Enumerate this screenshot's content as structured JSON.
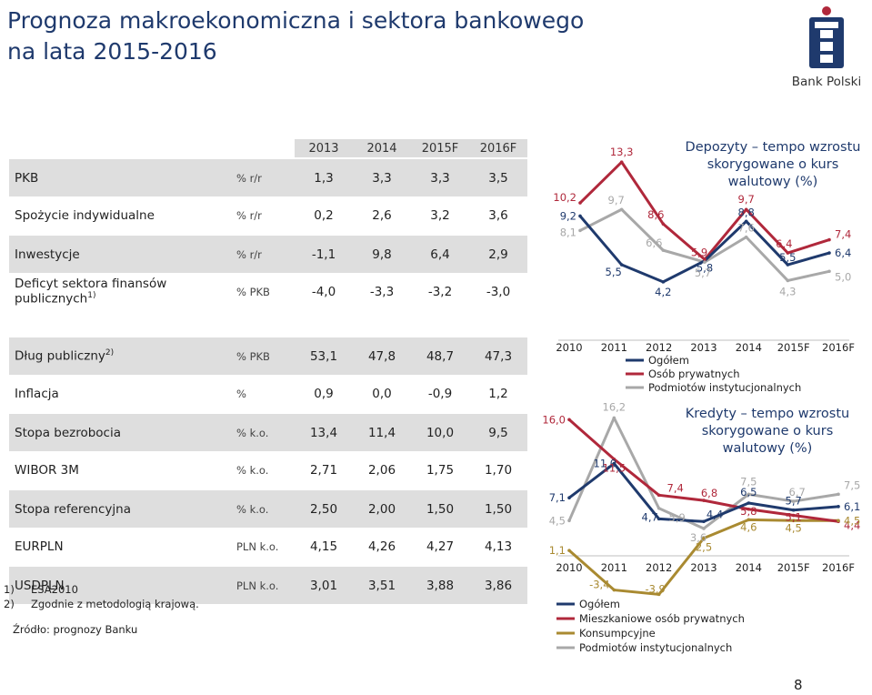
{
  "page": {
    "title_line1": "Prognoza makroekonomiczna i sektora bankowego",
    "title_line2": "na lata 2015-2016",
    "brand": "Bank Polski",
    "page_number": "8",
    "colors": {
      "navy": "#1f3a6d",
      "red": "#b0283b",
      "gold": "#a98a31",
      "gray": "#a8a8a8",
      "band": "#dedede"
    }
  },
  "table": {
    "years": [
      "2013",
      "2014",
      "2015F",
      "2016F"
    ],
    "rows": [
      {
        "label": "PKB",
        "sup": "",
        "unit": "% r/r",
        "values": [
          "1,3",
          "3,3",
          "3,3",
          "3,5"
        ]
      },
      {
        "label": "Spożycie indywidualne",
        "sup": "",
        "unit": "% r/r",
        "values": [
          "0,2",
          "2,6",
          "3,2",
          "3,6"
        ]
      },
      {
        "label": "Inwestycje",
        "sup": "",
        "unit": "% r/r",
        "values": [
          "-1,1",
          "9,8",
          "6,4",
          "2,9"
        ]
      },
      {
        "label": "Deficyt sektora finansów publicznych",
        "sup": "1)",
        "unit": "% PKB",
        "values": [
          "-4,0",
          "-3,3",
          "-3,2",
          "-3,0"
        ]
      },
      {
        "label": "Dług publiczny",
        "sup": "2)",
        "unit": "% PKB",
        "values": [
          "53,1",
          "47,8",
          "48,7",
          "47,3"
        ]
      },
      {
        "label": "Inflacja",
        "sup": "",
        "unit": "%",
        "values": [
          "0,9",
          "0,0",
          "-0,9",
          "1,2"
        ]
      },
      {
        "label": "Stopa bezrobocia",
        "sup": "",
        "unit": "% k.o.",
        "values": [
          "13,4",
          "11,4",
          "10,0",
          "9,5"
        ]
      },
      {
        "label": "WIBOR 3M",
        "sup": "",
        "unit": "% k.o.",
        "values": [
          "2,71",
          "2,06",
          "1,75",
          "1,70"
        ]
      },
      {
        "label": "Stopa referencyjna",
        "sup": "",
        "unit": "% k.o.",
        "values": [
          "2,50",
          "2,00",
          "1,50",
          "1,50"
        ]
      },
      {
        "label": "EURPLN",
        "sup": "",
        "unit": "PLN k.o.",
        "values": [
          "4,15",
          "4,26",
          "4,27",
          "4,13"
        ]
      },
      {
        "label": "USDPLN",
        "sup": "",
        "unit": "PLN k.o.",
        "values": [
          "3,01",
          "3,51",
          "3,88",
          "3,86"
        ]
      }
    ],
    "notes": [
      {
        "num": "1)",
        "text": "ESA2010"
      },
      {
        "num": "2)",
        "text": "Zgodnie z metodologią krajową."
      }
    ],
    "source": "Źródło: prognozy Banku"
  },
  "chart_data": [
    {
      "type": "line",
      "title_lines": [
        "Depozyty – tempo wzrostu",
        "skorygowane  o kurs",
        "walutowy (%)"
      ],
      "categories": [
        "2010",
        "2011",
        "2012",
        "2013",
        "2014",
        "2015F",
        "2016F"
      ],
      "series": [
        {
          "name": "Ogółem",
          "color": "#1f3a6d",
          "values": [
            9.2,
            5.5,
            4.2,
            5.8,
            8.8,
            5.5,
            6.4
          ],
          "labels": [
            "9,2",
            "5,5",
            "4,2",
            "5,8",
            "8,8",
            "5,5",
            "6,4"
          ]
        },
        {
          "name": "Osób prywatnych",
          "color": "#b0283b",
          "values": [
            10.2,
            13.3,
            8.6,
            5.9,
            9.7,
            6.4,
            7.4
          ],
          "labels": [
            "10,2",
            "13,3",
            "8,6",
            "5,9",
            "9,7",
            "6,4",
            "7,4"
          ]
        },
        {
          "name": "Podmiotów instytucjonalnych",
          "color": "#a8a8a8",
          "values": [
            8.1,
            9.7,
            6.6,
            5.7,
            7.6,
            4.3,
            5.0
          ],
          "labels": [
            "8,1",
            "9,7",
            "6,6",
            "5,7",
            "7,6",
            "4,3",
            "5,0"
          ]
        }
      ],
      "ylim": [
        3.5,
        14
      ]
    },
    {
      "type": "line",
      "title_lines": [
        "Kredyty – tempo wzrostu",
        "skorygowane  o kurs",
        "walutowy (%)"
      ],
      "categories": [
        "2010",
        "2011",
        "2012",
        "2013",
        "2014",
        "2015F",
        "2016F"
      ],
      "series": [
        {
          "name": "Ogółem",
          "color": "#1f3a6d",
          "values": [
            7.1,
            11.0,
            4.7,
            4.4,
            6.5,
            5.7,
            6.1
          ],
          "labels": [
            "7,1",
            "11,0",
            "4,7",
            "4,4",
            "6,5",
            "5,7",
            "6,1"
          ]
        },
        {
          "name": "Mieszkaniowe osób prywatnych",
          "color": "#b0283b",
          "values": [
            16.0,
            11.5,
            7.4,
            6.8,
            5.8,
            5.1,
            4.4
          ],
          "labels": [
            "16,0",
            "11,5",
            "7,4",
            "6,8",
            "5,8",
            "5,1",
            "4,4"
          ]
        },
        {
          "name": "Konsumpcyjne",
          "color": "#a98a31",
          "values": [
            1.1,
            -3.4,
            -3.9,
            2.5,
            4.6,
            4.5,
            4.5
          ],
          "labels": [
            "1,1",
            "-3,4",
            "-3,9",
            "2,5",
            "4,6",
            "4,5",
            "4,5"
          ]
        },
        {
          "name": "Podmiotów instytucjonalnych",
          "color": "#a8a8a8",
          "values": [
            4.5,
            16.2,
            5.9,
            3.6,
            7.5,
            6.7,
            7.5
          ],
          "labels": [
            "4,5",
            "16,2",
            "5,9",
            "3,6",
            "7,5",
            "6,7",
            "7,5"
          ]
        }
      ],
      "ylim": [
        -5,
        18
      ]
    }
  ]
}
